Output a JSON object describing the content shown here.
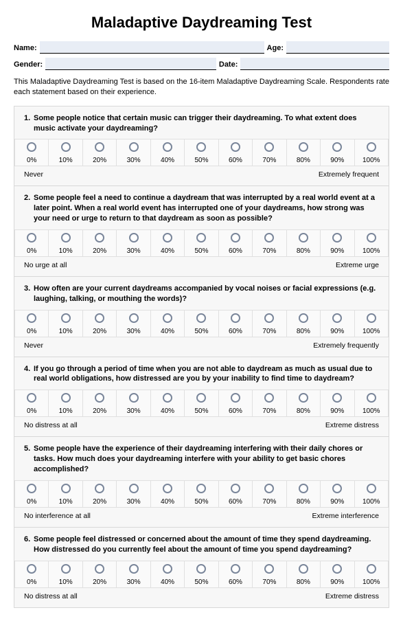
{
  "title": "Maladaptive Daydreaming Test",
  "fields": {
    "name_label": "Name:",
    "age_label": "Age:",
    "gender_label": "Gender:",
    "date_label": "Date:"
  },
  "intro": "This Maladaptive Daydreaming Test is based on the 16-item Maladaptive Daydreaming Scale. Respondents rate each statement based on their experience.",
  "scale_labels": [
    "0%",
    "10%",
    "20%",
    "30%",
    "40%",
    "50%",
    "60%",
    "70%",
    "80%",
    "90%",
    "100%"
  ],
  "questions": [
    {
      "num": "1.",
      "text": "Some people notice that certain music can trigger their daydreaming. To what extent does music activate your daydreaming?",
      "anchor_low": "Never",
      "anchor_high": "Extremely frequent"
    },
    {
      "num": "2.",
      "text": "Some people feel a need to continue a daydream that was interrupted by a real world event at a later point. When a real world event has interrupted one of your daydreams, how strong was your need or urge to return to that daydream as soon as possible?",
      "anchor_low": "No urge at all",
      "anchor_high": "Extreme urge"
    },
    {
      "num": "3.",
      "text": "How often are your current daydreams accompanied by vocal noises or facial expressions (e.g. laughing, talking, or mouthing the words)?",
      "anchor_low": "Never",
      "anchor_high": "Extremely frequently"
    },
    {
      "num": "4.",
      "text": "If you go through a period of time when you are not able to daydream as much as usual due to real world obligations, how distressed are you by your inability to find time to daydream?",
      "anchor_low": "No distress at all",
      "anchor_high": "Extreme distress"
    },
    {
      "num": "5.",
      "text": "Some people have the experience of their daydreaming interfering with their daily chores or tasks. How much does your daydreaming interfere with your ability to get basic chores accomplished?",
      "anchor_low": "No interference at all",
      "anchor_high": "Extreme interference"
    },
    {
      "num": "6.",
      "text": "Some people feel distressed or concerned about the amount of time they spend daydreaming. How distressed do you currently feel about the amount of time you spend daydreaming?",
      "anchor_low": "No distress at all",
      "anchor_high": "Extreme distress"
    }
  ],
  "colors": {
    "field_bg": "#e8edf5",
    "border": "#d8d8d8",
    "cell_border": "#e0e0e0",
    "radio_border": "#7a869a",
    "page_bg": "#ffffff",
    "questions_bg": "#f7f7f7"
  }
}
